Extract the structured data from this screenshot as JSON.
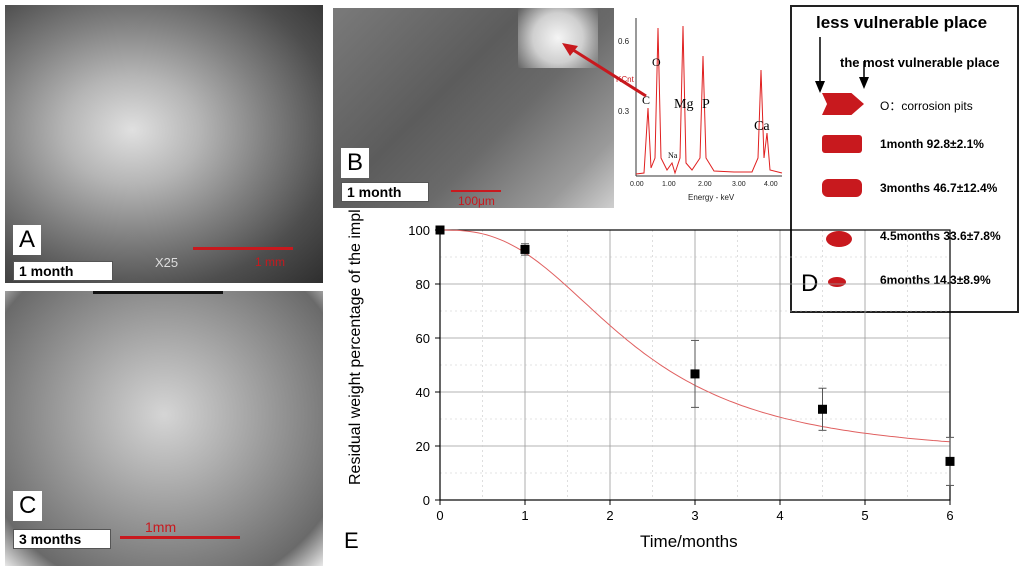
{
  "panels": {
    "a": {
      "letter": "A",
      "tag": "1 month",
      "scale": "1 mm",
      "sem_text": "X25"
    },
    "b": {
      "letter": "B",
      "tag": "1 month",
      "scale": "100μm"
    },
    "c": {
      "letter": "C",
      "tag": "3 months",
      "scale": "1mm"
    }
  },
  "eds": {
    "ylabel": "KCnt",
    "xlabel": "Energy - keV",
    "yticks": [
      "0.6",
      "0.3"
    ],
    "xticks": [
      "0.00",
      "1.00",
      "2.00",
      "3.00",
      "4.00"
    ],
    "elements": [
      "C",
      "O",
      "Na",
      "Mg",
      "P",
      "Ca"
    ]
  },
  "legend_d": {
    "letter": "D",
    "heading": "less vulnerable place",
    "subheading": "the  most vulnerable place",
    "pits_label": "O：corrosion pits",
    "items": [
      "1month 92.8±2.1%",
      "3months 46.7±12.4%",
      "4.5months 33.6±7.8%",
      "6months 14.3±8.9%"
    ],
    "colors": {
      "implant": "#c8191e"
    }
  },
  "chart_data": {
    "type": "scatter",
    "panel_letter": "E",
    "xlabel": "Time/months",
    "ylabel": "Residual weight percentage of the implants/%",
    "xlim": [
      0,
      6
    ],
    "ylim": [
      0,
      100
    ],
    "xticks": [
      0,
      1,
      2,
      3,
      4,
      5,
      6
    ],
    "yticks": [
      0,
      20,
      40,
      60,
      80,
      100
    ],
    "points": [
      {
        "x": 0,
        "y": 100,
        "err": 0
      },
      {
        "x": 1,
        "y": 92.8,
        "err": 2.1
      },
      {
        "x": 3,
        "y": 46.7,
        "err": 12.4
      },
      {
        "x": 4.5,
        "y": 33.6,
        "err": 7.8
      },
      {
        "x": 6,
        "y": 14.3,
        "err": 8.9
      }
    ],
    "fit_curve": {
      "type": "sigmoid",
      "color": "#e06060"
    },
    "grid": true
  }
}
